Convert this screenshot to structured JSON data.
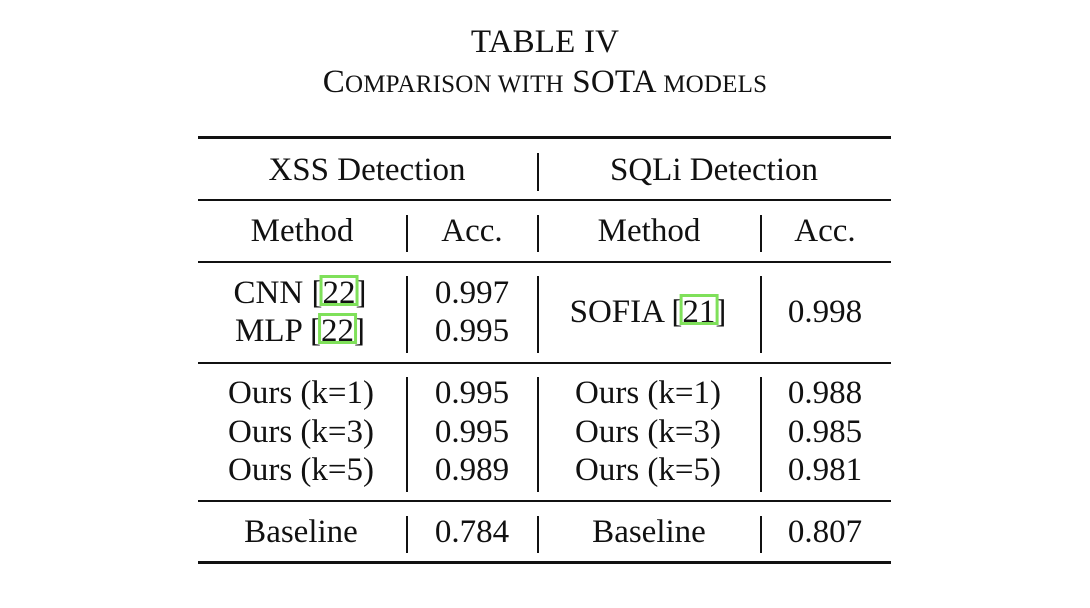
{
  "caption": {
    "label": "TABLE IV",
    "title_first": "C",
    "title_rest_sc": "OMPARISON WITH",
    "title_mid": "SOTA",
    "title_end_sc": "MODELS"
  },
  "table": {
    "groups": [
      "XSS Detection",
      "SQLi Detection"
    ],
    "columns": [
      "Method",
      "Acc.",
      "Method",
      "Acc."
    ],
    "sota": {
      "xss": [
        {
          "method": "CNN",
          "ref": "22",
          "acc": "0.997"
        },
        {
          "method": "MLP",
          "ref": "22",
          "acc": "0.995"
        }
      ],
      "sqli": {
        "method": "SOFIA",
        "ref": "21",
        "acc": "0.998"
      }
    },
    "ours": {
      "xss": [
        {
          "method": "Ours (k=1)",
          "acc": "0.995"
        },
        {
          "method": "Ours (k=3)",
          "acc": "0.995"
        },
        {
          "method": "Ours (k=5)",
          "acc": "0.989"
        }
      ],
      "sqli": [
        {
          "method": "Ours (k=1)",
          "acc": "0.988"
        },
        {
          "method": "Ours (k=3)",
          "acc": "0.985"
        },
        {
          "method": "Ours (k=5)",
          "acc": "0.981"
        }
      ]
    },
    "baseline": {
      "xss": {
        "method": "Baseline",
        "acc": "0.784"
      },
      "sqli": {
        "method": "Baseline",
        "acc": "0.807"
      }
    }
  },
  "colors": {
    "text": "#111111",
    "citation_highlight": "#7fe05a"
  }
}
